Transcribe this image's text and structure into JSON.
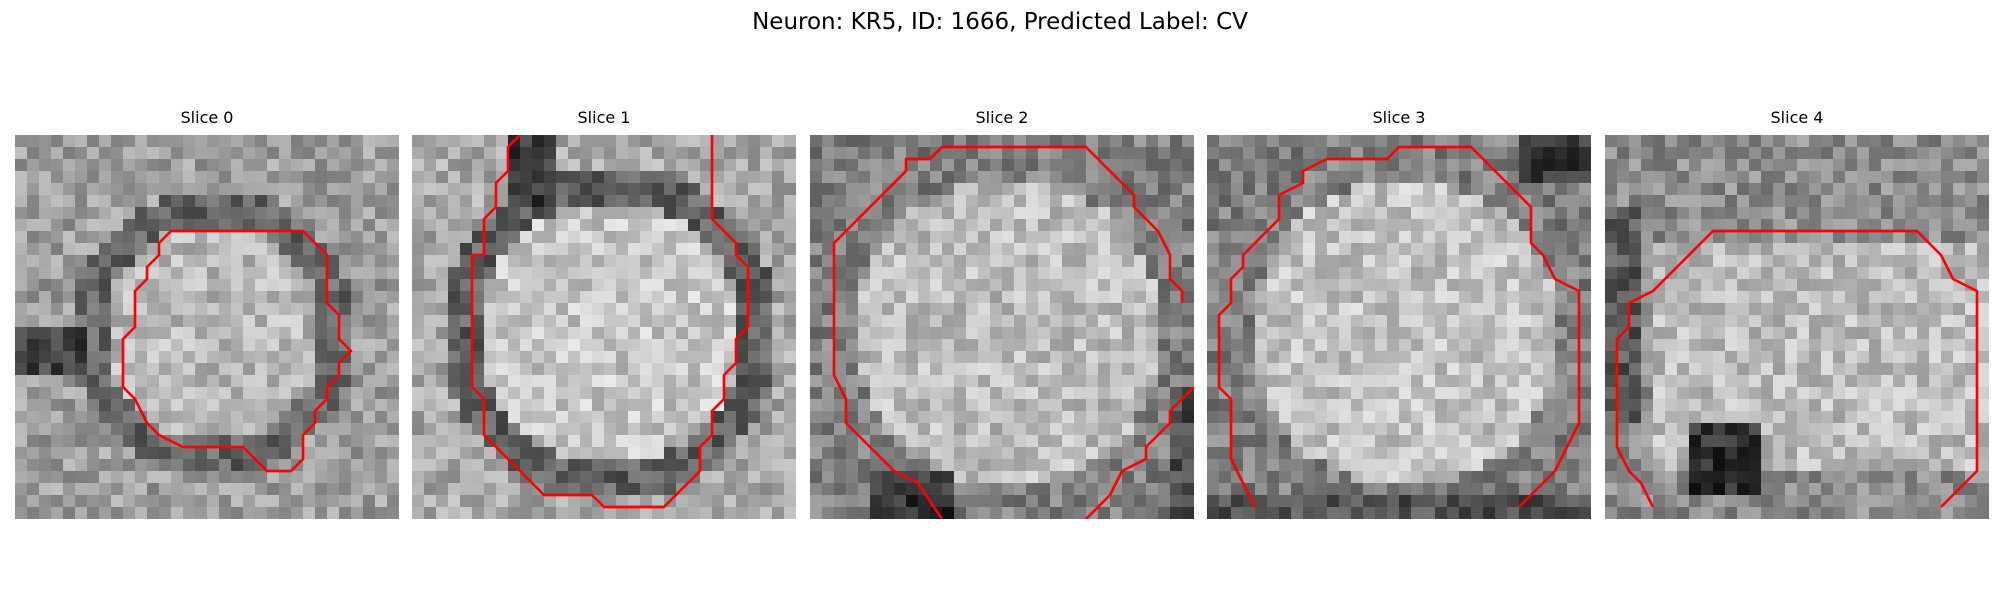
{
  "figure": {
    "title": "Neuron: KR5, ID: 1666, Predicted Label: CV"
  },
  "contour_color": "#ff0000",
  "panels": [
    {
      "title": "Slice 0",
      "seed": 11,
      "shading": "slice0",
      "contour_icon": "contour-line"
    },
    {
      "title": "Slice 1",
      "seed": 23,
      "shading": "slice1",
      "contour_icon": "contour-line"
    },
    {
      "title": "Slice 2",
      "seed": 37,
      "shading": "slice2",
      "contour_icon": "contour-line"
    },
    {
      "title": "Slice 3",
      "seed": 51,
      "shading": "slice3",
      "contour_icon": "contour-line"
    },
    {
      "title": "Slice 4",
      "seed": 67,
      "shading": "slice4",
      "contour_icon": "contour-line"
    }
  ]
}
